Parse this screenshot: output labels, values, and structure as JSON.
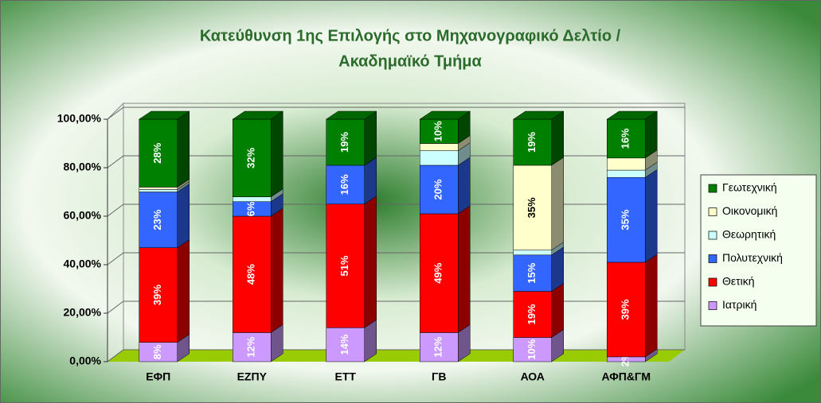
{
  "chart_data": {
    "type": "bar3d_stacked",
    "title": "Κατεύθυνση 1ης Επιλογής στο Μηχανογραφικό Δελτίο /",
    "subtitle": "Ακαδημαϊκό Τμήμα",
    "categories": [
      "ΕΦΠ",
      "ΕΖΠΥ",
      "ΕΤΤ",
      "ΓΒ",
      "ΑΟΑ",
      "ΑΦΠ&ΓΜ"
    ],
    "series": [
      {
        "name": "Ιατρική",
        "color": "#cc99ff",
        "values": [
          8,
          12,
          14,
          12,
          10,
          2
        ],
        "value_labels": [
          "8%",
          "12%",
          "14%",
          "12%",
          "10%",
          "2%"
        ]
      },
      {
        "name": "Θετική",
        "color": "#ff0000",
        "values": [
          39,
          48,
          51,
          49,
          19,
          39
        ],
        "value_labels": [
          "39%",
          "48%",
          "51%",
          "49%",
          "19%",
          "39%"
        ]
      },
      {
        "name": "Πολυτεχνική",
        "color": "#3366ff",
        "values": [
          23,
          6,
          16,
          20,
          15,
          35
        ],
        "value_labels": [
          "23%",
          "6%",
          "16%",
          "20%",
          "15%",
          "35%"
        ]
      },
      {
        "name": "Θεωρητική",
        "color": "#ccffff",
        "values": [
          1,
          2,
          0,
          6,
          2,
          3
        ],
        "value_labels": [
          null,
          null,
          null,
          null,
          null,
          null
        ]
      },
      {
        "name": "Οικονομική",
        "color": "#ffffcc",
        "values": [
          1,
          0,
          0,
          3,
          35,
          5
        ],
        "value_labels": [
          null,
          null,
          null,
          null,
          "35%",
          null
        ]
      },
      {
        "name": "Γεωτεχνική",
        "color": "#008000",
        "values": [
          28,
          32,
          19,
          10,
          19,
          16
        ],
        "value_labels": [
          "28%",
          "32%",
          "19%",
          "10%",
          "19%",
          "16%"
        ]
      }
    ],
    "ylim": [
      0,
      100
    ],
    "yticks": [
      {
        "value": 0,
        "label": "0,00%"
      },
      {
        "value": 20,
        "label": "20,00%"
      },
      {
        "value": 40,
        "label": "40,00%"
      },
      {
        "value": 60,
        "label": "60,00%"
      },
      {
        "value": 80,
        "label": "80,00%"
      },
      {
        "value": 100,
        "label": "100,00%"
      }
    ],
    "legend": "right",
    "grid": true
  }
}
